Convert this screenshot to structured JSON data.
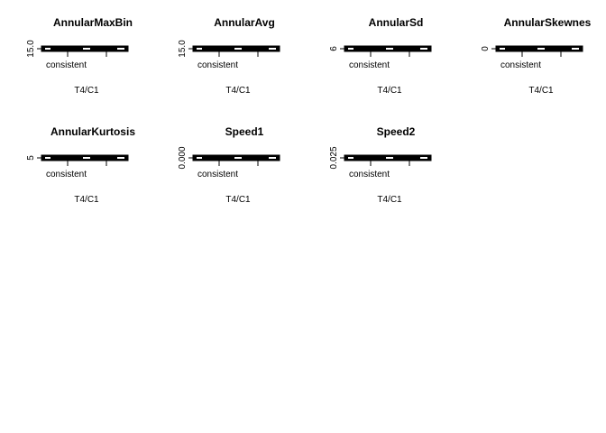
{
  "chart_data": [
    {
      "type": "box",
      "title": "AnnularMaxBin",
      "categories": [
        "consistent"
      ],
      "xlabel": "T4/C1",
      "ytick_labels": [
        "15.0"
      ]
    },
    {
      "type": "box",
      "title": "AnnularAvg",
      "categories": [
        "consistent"
      ],
      "xlabel": "T4/C1",
      "ytick_labels": [
        "15.0"
      ]
    },
    {
      "type": "box",
      "title": "AnnularSd",
      "categories": [
        "consistent"
      ],
      "xlabel": "T4/C1",
      "ytick_labels": [
        "6"
      ]
    },
    {
      "type": "box",
      "title": "AnnularSkewnes",
      "categories": [
        "consistent"
      ],
      "xlabel": "T4/C1",
      "ytick_labels": [
        "0"
      ]
    },
    {
      "type": "box",
      "title": "AnnularKurtosis",
      "categories": [
        "consistent"
      ],
      "xlabel": "T4/C1",
      "ytick_labels": [
        "5"
      ]
    },
    {
      "type": "box",
      "title": "Speed1",
      "categories": [
        "consistent"
      ],
      "xlabel": "T4/C1",
      "ytick_labels": [
        "0.000"
      ]
    },
    {
      "type": "box",
      "title": "Speed2",
      "categories": [
        "consistent"
      ],
      "xlabel": "T4/C1",
      "ytick_labels": [
        "0.025"
      ]
    }
  ]
}
